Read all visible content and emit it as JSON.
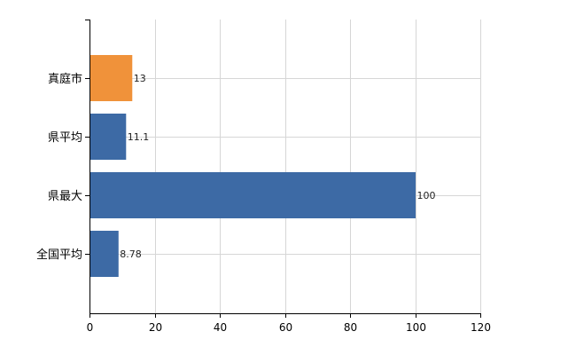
{
  "chart_data": {
    "type": "bar",
    "orientation": "horizontal",
    "categories": [
      "真庭市",
      "県平均",
      "県最大",
      "全国平均"
    ],
    "values": [
      13,
      11.1,
      100,
      8.78
    ],
    "data_labels": [
      "13",
      "11.1",
      "100",
      "8.78"
    ],
    "bar_colors": [
      "#f0923a",
      "#3d6aa5",
      "#3d6aa5",
      "#3d6aa5"
    ],
    "highlight_color": "#f0923a",
    "series_color": "#3d6aa5",
    "xlim": [
      0,
      120
    ],
    "x_ticks": [
      0,
      20,
      40,
      60,
      80,
      100,
      120
    ],
    "x_tick_labels": [
      "0",
      "20",
      "40",
      "60",
      "80",
      "100",
      "120"
    ],
    "title": "",
    "xlabel": "",
    "ylabel": "",
    "grid": true,
    "legend": "none"
  }
}
